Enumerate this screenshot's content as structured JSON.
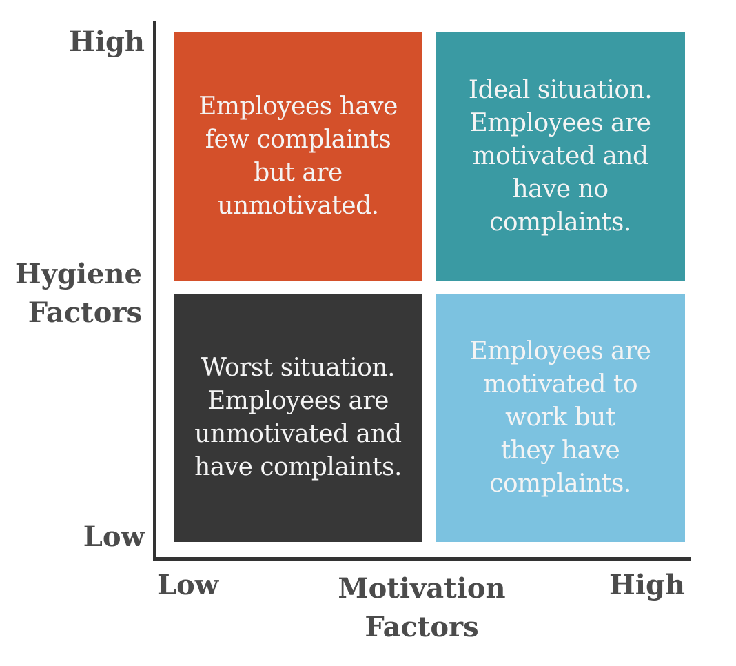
{
  "y_axis": {
    "high_label": "High",
    "low_label": "Low",
    "title_lines": [
      "Hygiene",
      "Factors"
    ]
  },
  "x_axis": {
    "low_label": "Low",
    "high_label": "High",
    "title_lines": [
      "Motivation",
      "Factors"
    ]
  },
  "quadrants": {
    "top_left": {
      "lines": [
        "Employees have",
        "few complaints",
        "but are",
        "unmotivated."
      ],
      "color": "#d4502a"
    },
    "top_right": {
      "lines": [
        "Ideal situation.",
        "Employees are",
        "motivated and",
        "have no",
        "complaints."
      ],
      "color": "#3a9aa3"
    },
    "bottom_left": {
      "lines": [
        "Worst situation.",
        "Employees are",
        "unmotivated and",
        "have complaints."
      ],
      "color": "#373737"
    },
    "bottom_right": {
      "lines": [
        "Employees are",
        "motivated to",
        "work but",
        "they have",
        "complaints."
      ],
      "color": "#7cc2e0"
    }
  },
  "colors": {
    "axis": "#333333",
    "label_text": "#4b4b4b",
    "quadrant_text": "#f4f4f4"
  }
}
